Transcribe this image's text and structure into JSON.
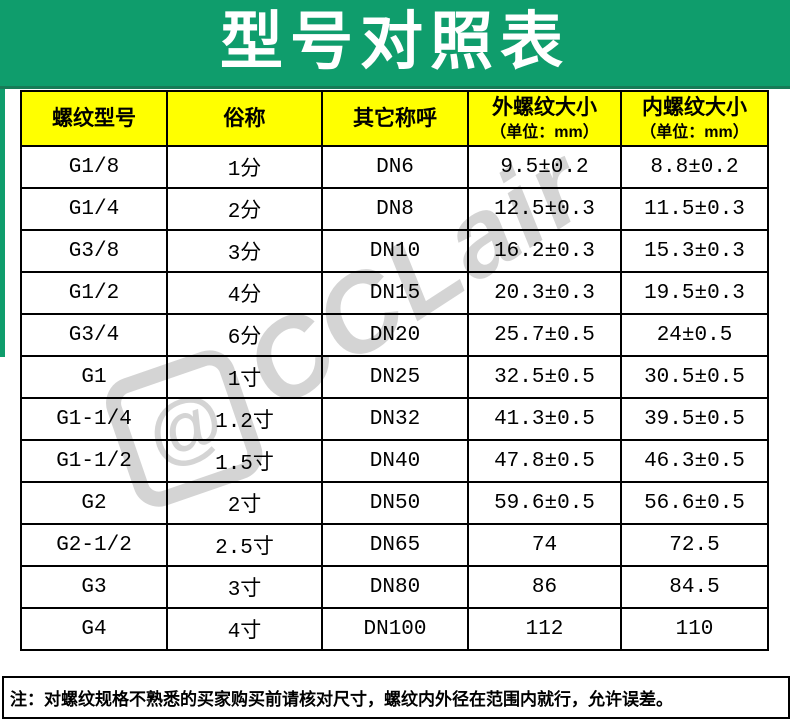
{
  "page": {
    "title": "型号对照表"
  },
  "colors": {
    "header_band_green": "#0F9D6C",
    "table_header_yellow": "#FFFF00",
    "border_black": "#000000",
    "title_white": "#FFFFFF",
    "watermark_gray": "#D2D2D2"
  },
  "table": {
    "headers": [
      {
        "title": "螺纹型号",
        "subtitle": ""
      },
      {
        "title": "俗称",
        "subtitle": ""
      },
      {
        "title": "其它称呼",
        "subtitle": ""
      },
      {
        "title": "外螺纹大小",
        "subtitle": "（单位：mm）"
      },
      {
        "title": "内螺纹大小",
        "subtitle": "（单位：mm）"
      }
    ],
    "rows": [
      [
        "G1/8",
        "1分",
        "DN6",
        "9.5±0.2",
        "8.8±0.2"
      ],
      [
        "G1/4",
        "2分",
        "DN8",
        "12.5±0.3",
        "11.5±0.3"
      ],
      [
        "G3/8",
        "3分",
        "DN10",
        "16.2±0.3",
        "15.3±0.3"
      ],
      [
        "G1/2",
        "4分",
        "DN15",
        "20.3±0.3",
        "19.5±0.3"
      ],
      [
        "G3/4",
        "6分",
        "DN20",
        "25.7±0.5",
        "24±0.5"
      ],
      [
        "G1",
        "1寸",
        "DN25",
        "32.5±0.5",
        "30.5±0.5"
      ],
      [
        "G1-1/4",
        "1.2寸",
        "DN32",
        "41.3±0.5",
        "39.5±0.5"
      ],
      [
        "G1-1/2",
        "1.5寸",
        "DN40",
        "47.8±0.5",
        "46.3±0.5"
      ],
      [
        "G2",
        "2寸",
        "DN50",
        "59.6±0.5",
        "56.6±0.5"
      ],
      [
        "G2-1/2",
        "2.5寸",
        "DN65",
        "74",
        "72.5"
      ],
      [
        "G3",
        "3寸",
        "DN80",
        "86",
        "84.5"
      ],
      [
        "G4",
        "4寸",
        "DN100",
        "112",
        "110"
      ]
    ]
  },
  "note": "注：对螺纹规格不熟悉的买家购买前请核对尺寸，螺纹内外径在范围内就行，允许误差。",
  "watermark": {
    "logo": "@",
    "text": "CCLair",
    "dot": ""
  }
}
